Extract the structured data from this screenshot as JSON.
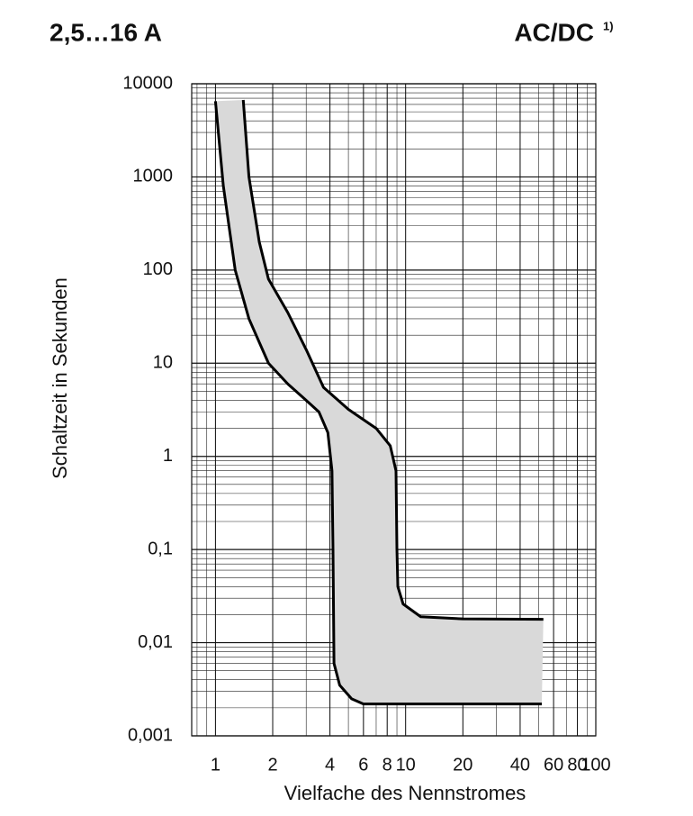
{
  "chart_data": {
    "type": "line",
    "log_x": true,
    "log_y": true,
    "title": "2,5…16 A",
    "title_right": "AC/DC",
    "footnote_mark": "1)",
    "xlabel": "Vielfache des Nennstromes",
    "ylabel": "Schaltzeit in Sekunden",
    "xlim": [
      0.75,
      100
    ],
    "ylim": [
      0.001,
      10000
    ],
    "xticks": [
      1,
      2,
      4,
      6,
      8,
      10,
      20,
      40,
      60,
      80,
      100
    ],
    "yticks": [
      {
        "value": 0.001,
        "label": "0,001"
      },
      {
        "value": 0.01,
        "label": "0,01"
      },
      {
        "value": 0.1,
        "label": "0,1"
      },
      1,
      10,
      100,
      1000,
      10000
    ],
    "grid": true,
    "minor_grid": true,
    "fill_between": true,
    "fill_color": "#d9d9d9",
    "series": [
      {
        "color": "#000000",
        "x": [
          1,
          1.1,
          1.27,
          1.5,
          1.9,
          2.4,
          3.0,
          3.5,
          3.9,
          4.1,
          4.15,
          4.2,
          4.5,
          5.2,
          6,
          52
        ],
        "values": [
          6500,
          800,
          100,
          30,
          10,
          6,
          4,
          3,
          1.8,
          0.7,
          0.1,
          0.006,
          0.0035,
          0.0025,
          0.0022,
          0.0022
        ]
      },
      {
        "color": "#000000",
        "x": [
          1.4,
          1.5,
          1.7,
          1.9,
          2.4,
          3,
          3.7,
          5,
          7,
          8.3,
          8.9,
          9,
          9.1,
          9.7,
          12,
          20,
          53
        ],
        "values": [
          6700,
          1000,
          200,
          80,
          35,
          14,
          5.5,
          3.2,
          2,
          1.3,
          0.7,
          0.1,
          0.04,
          0.026,
          0.019,
          0.018,
          0.0178
        ]
      }
    ]
  }
}
